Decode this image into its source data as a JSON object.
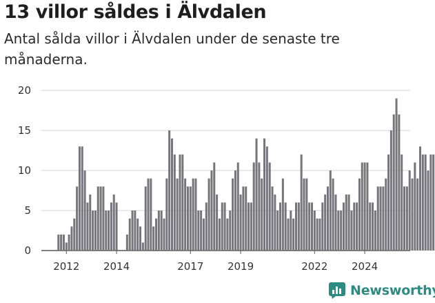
{
  "title": "13 villor såldes i Älvdalen",
  "subtitle": "Antal sålda villor i Älvdalen under de senaste tre månaderna.",
  "brand": {
    "name": "Newsworthy",
    "logo_icon": "chart-bar-logo-icon"
  },
  "colors": {
    "bar": "#75757b",
    "highlight": "#2ea39a",
    "grid": "#d6d6d6",
    "brand": "#2e8b82"
  },
  "chart_data": {
    "type": "bar",
    "title": "13 villor såldes i Älvdalen",
    "subtitle": "Antal sålda villor i Älvdalen under de senaste tre månaderna.",
    "xlabel": "",
    "ylabel": "",
    "ylim": [
      0,
      20
    ],
    "yticks": [
      0,
      5,
      10,
      15,
      20
    ],
    "xtick_labels": [
      "2012",
      "2014",
      "2017",
      "2019",
      "2022",
      "2024"
    ],
    "xtick_index": [
      3,
      22,
      50,
      69,
      97,
      116
    ],
    "grid": true,
    "start": "2011-10",
    "interval": "month",
    "highlight_label": "13",
    "values": [
      2,
      2,
      2,
      1,
      2,
      3,
      4,
      8,
      13,
      13,
      10,
      6,
      7,
      5,
      5,
      8,
      8,
      8,
      5,
      5,
      6,
      7,
      6,
      0,
      0,
      0,
      2,
      4,
      5,
      5,
      4,
      3,
      1,
      8,
      9,
      9,
      3,
      4,
      5,
      5,
      4,
      9,
      15,
      14,
      12,
      9,
      12,
      12,
      9,
      8,
      8,
      9,
      9,
      5,
      5,
      4,
      6,
      9,
      10,
      11,
      7,
      4,
      6,
      6,
      4,
      5,
      9,
      10,
      11,
      7,
      8,
      8,
      6,
      6,
      11,
      14,
      11,
      9,
      14,
      13,
      11,
      8,
      7,
      5,
      6,
      9,
      6,
      4,
      5,
      4,
      6,
      6,
      12,
      9,
      9,
      6,
      6,
      5,
      4,
      4,
      6,
      7,
      8,
      10,
      9,
      7,
      5,
      5,
      6,
      7,
      7,
      5,
      6,
      6,
      9,
      11,
      11,
      11,
      6,
      6,
      5,
      8,
      8,
      8,
      9,
      12,
      15,
      17,
      19,
      17,
      12,
      8,
      8,
      10,
      9,
      11,
      9,
      13,
      12,
      12,
      10,
      12,
      12,
      11,
      12,
      13,
      11,
      10,
      8,
      12,
      13,
      14,
      13
    ]
  }
}
